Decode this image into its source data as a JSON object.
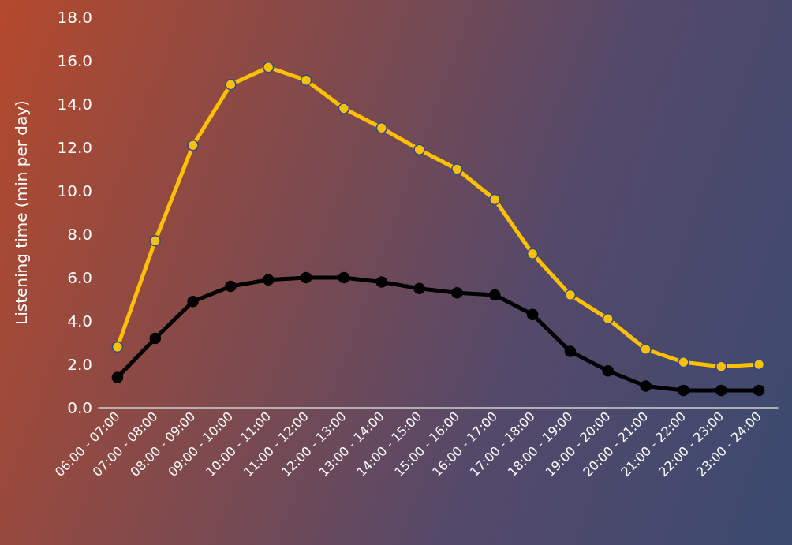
{
  "chart_data": {
    "type": "line",
    "ylabel": "Listening time (min per day)",
    "categories": [
      "06:00 - 07:00",
      "07:00 - 08:00",
      "08:00 - 09:00",
      "09:00 - 10:00",
      "10:00 - 11:00",
      "11:00 - 12:00",
      "12:00 - 13:00",
      "13:00 - 14:00",
      "14:00 - 15:00",
      "15:00 - 16:00",
      "16:00 - 17:00",
      "17:00 - 18:00",
      "18:00 - 19:00",
      "19:00 - 20:00",
      "20:00 - 21:00",
      "21:00 - 22:00",
      "22:00 - 23:00",
      "23:00 - 24:00"
    ],
    "series": [
      {
        "color": "#ffc000",
        "values": [
          2.8,
          7.7,
          12.1,
          14.9,
          15.7,
          15.1,
          13.8,
          12.9,
          11.9,
          11.0,
          9.6,
          7.1,
          5.2,
          4.1,
          2.7,
          2.1,
          1.9,
          2.0
        ]
      },
      {
        "color": "#000000",
        "values": [
          1.4,
          3.2,
          4.9,
          5.6,
          5.9,
          6.0,
          6.0,
          5.8,
          5.5,
          5.3,
          5.2,
          4.3,
          2.6,
          1.7,
          1.0,
          0.8,
          0.8,
          0.8
        ]
      }
    ],
    "ylim": [
      0,
      18
    ],
    "yticks": [
      {
        "value": 0,
        "label": "0.0"
      },
      {
        "value": 2,
        "label": "2.0"
      },
      {
        "value": 4,
        "label": "4.0"
      },
      {
        "value": 6,
        "label": "6.0"
      },
      {
        "value": 8,
        "label": "8.0"
      },
      {
        "value": 10,
        "label": "10.0"
      },
      {
        "value": 12,
        "label": "12.0"
      },
      {
        "value": 14,
        "label": "14.0"
      },
      {
        "value": 16,
        "label": "16.0"
      },
      {
        "value": 18,
        "label": "18.0"
      }
    ],
    "grid": false,
    "marker": "circle",
    "line_style": "solid"
  }
}
